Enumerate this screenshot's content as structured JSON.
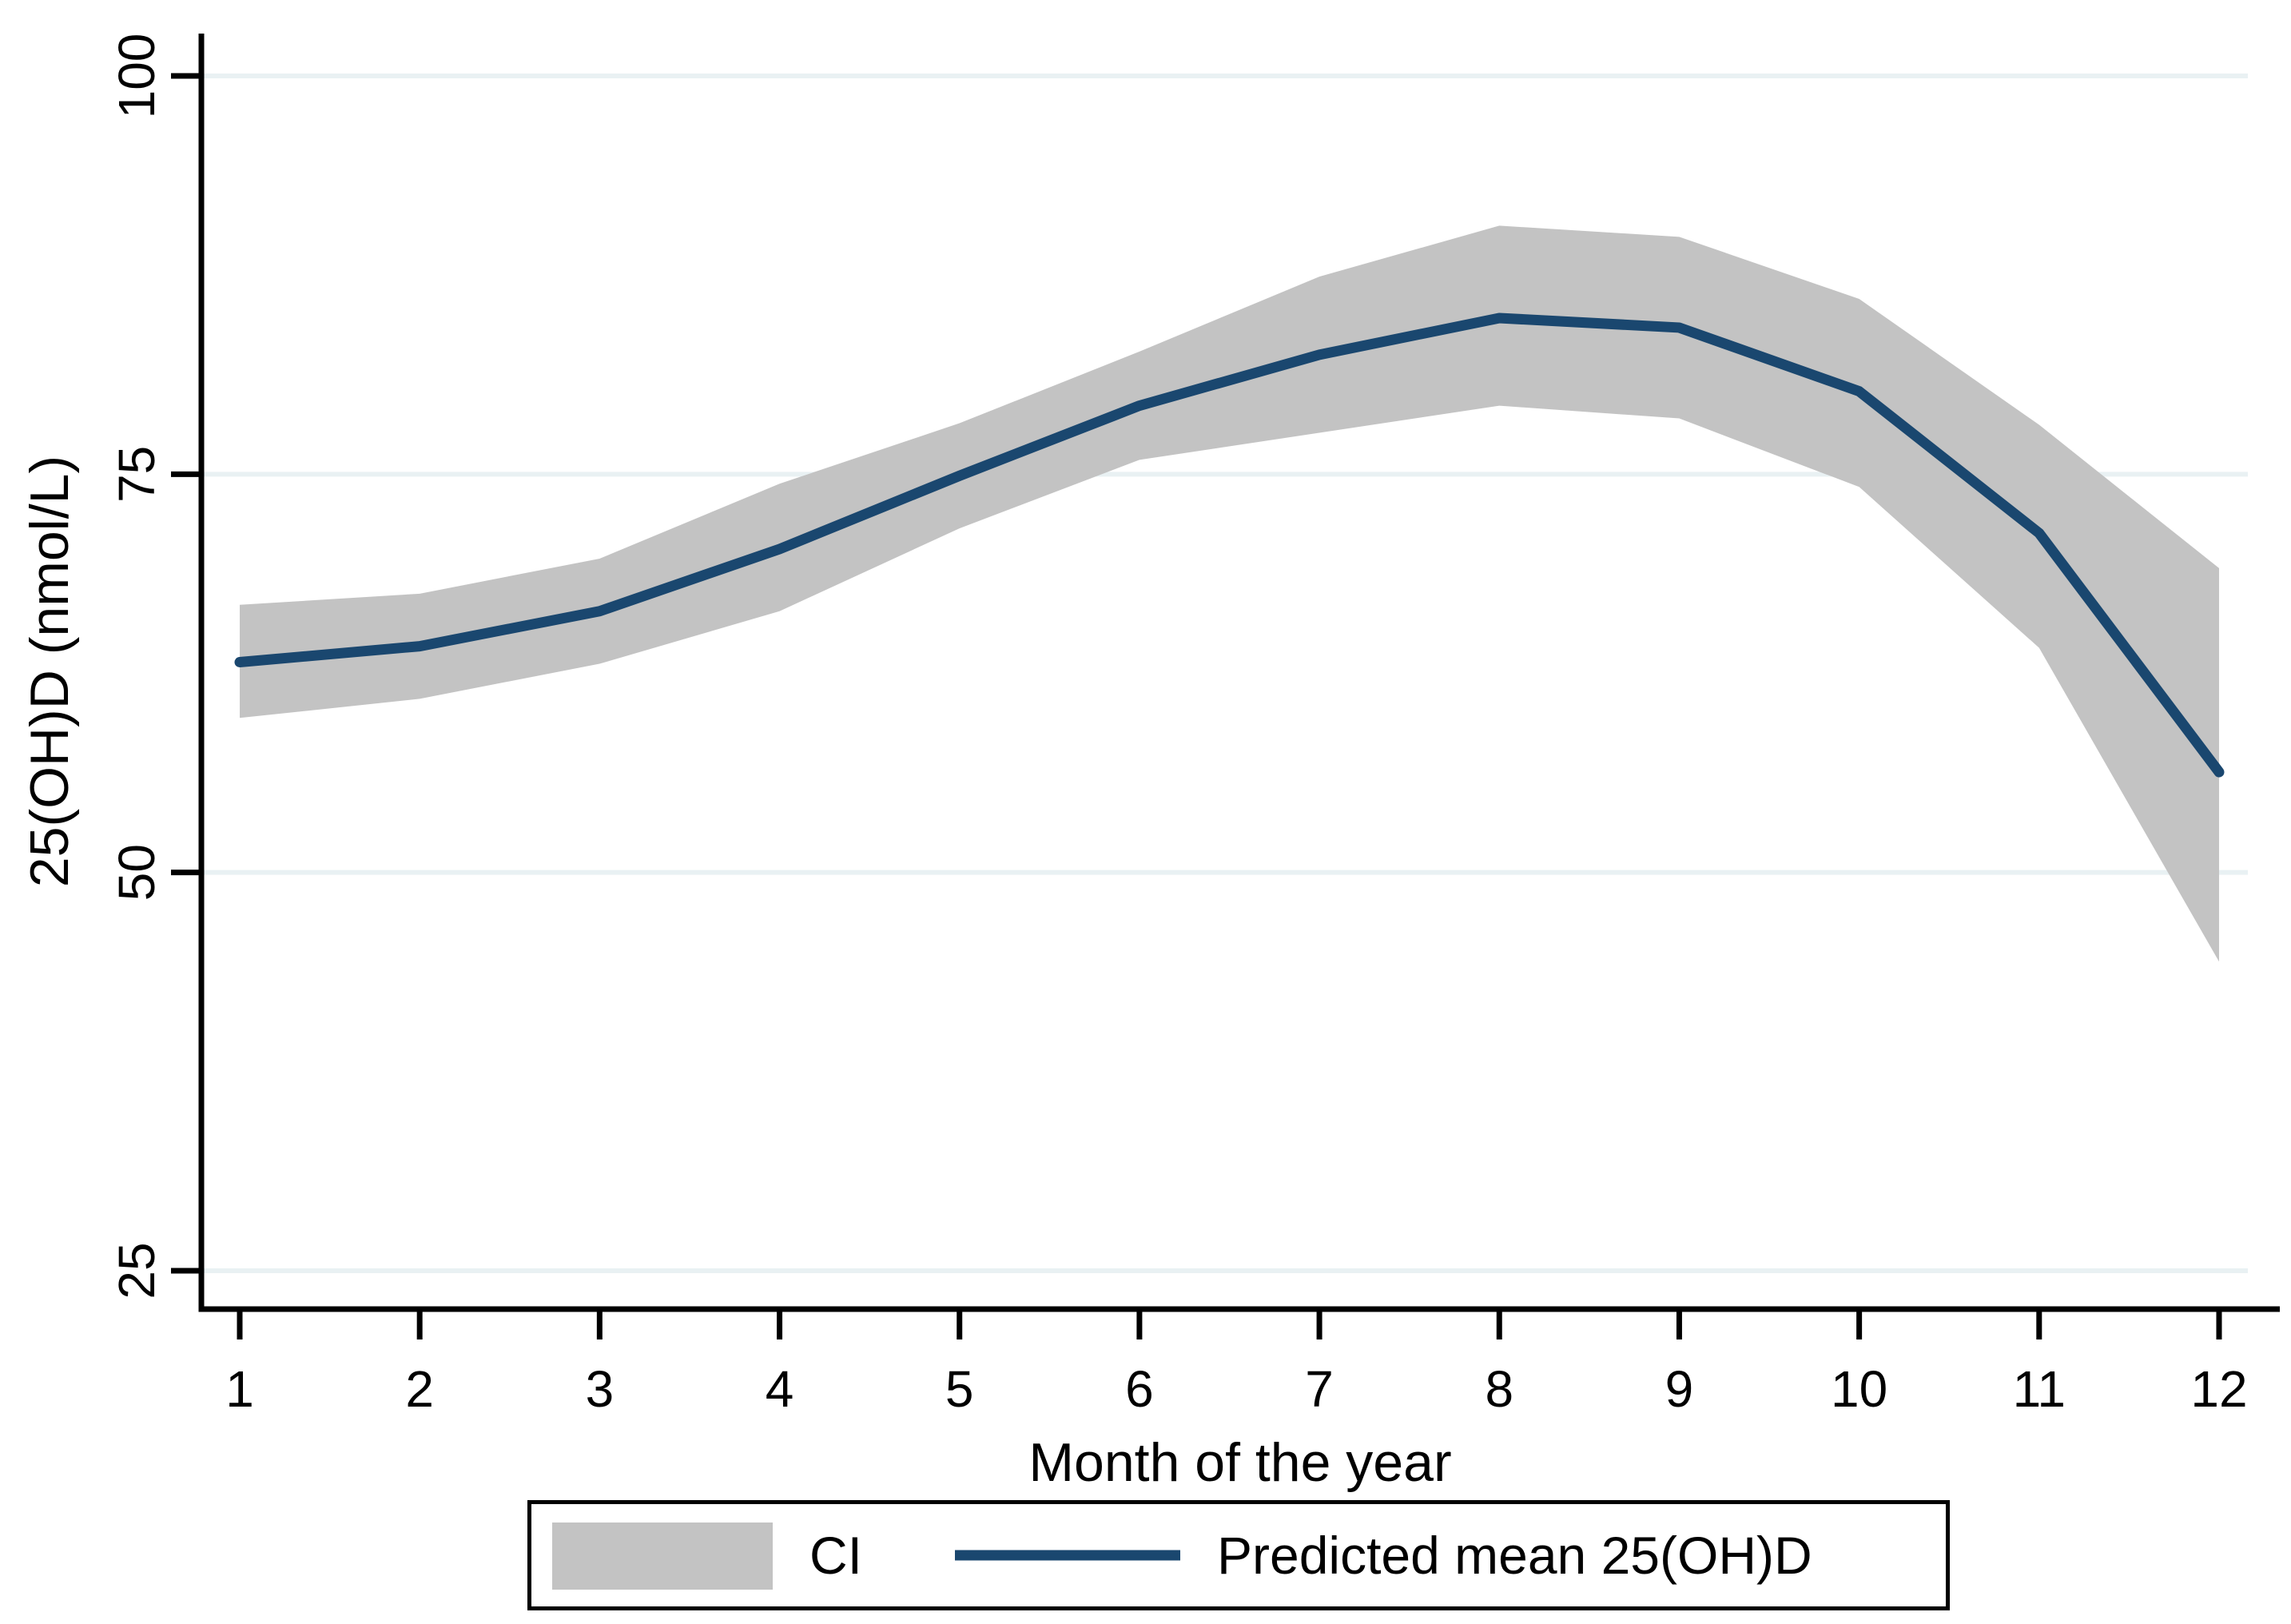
{
  "figure_title": "",
  "colors": {
    "mean_line": "#1a476f",
    "ci_band": "#c3c3c3",
    "gridline": "#e9f1f3",
    "axis": "#000000",
    "background": "#ffffff",
    "text": "#000000"
  },
  "legend": {
    "ci_label": "CI",
    "mean_label": "Predicted mean 25(OH)D",
    "position": "bottom"
  },
  "chart_data": {
    "type": "line",
    "title": "",
    "xlabel": "Month of the year",
    "ylabel": "25(OH)D (nmol/L)",
    "x": [
      1,
      2,
      3,
      4,
      5,
      6,
      7,
      8,
      9,
      10,
      11,
      12
    ],
    "x_tick_labels": [
      "1",
      "2",
      "3",
      "4",
      "5",
      "6",
      "7",
      "8",
      "9",
      "10",
      "11",
      "12"
    ],
    "y_ticks": [
      25,
      50,
      75,
      100
    ],
    "y_tick_labels": [
      "25",
      "50",
      "75",
      "100"
    ],
    "ylim": [
      22.5,
      102.7
    ],
    "grid": "horizontal",
    "legend_position": "bottom",
    "series": [
      {
        "name": "Predicted mean 25(OH)D",
        "type": "line",
        "color": "#1a476f",
        "values": [
          63.2,
          64.2,
          66.4,
          70.3,
          74.9,
          79.3,
          82.5,
          84.8,
          84.2,
          80.2,
          71.3,
          56.3
        ]
      }
    ],
    "ci_band": {
      "name": "CI",
      "color": "#c3c3c3",
      "lower": [
        59.7,
        60.9,
        63.1,
        66.4,
        71.6,
        75.9,
        77.6,
        79.3,
        78.5,
        74.2,
        64.1,
        44.4
      ],
      "upper": [
        66.8,
        67.5,
        69.7,
        74.4,
        78.2,
        82.7,
        87.4,
        90.6,
        89.9,
        86.0,
        78.1,
        69.1
      ]
    }
  }
}
